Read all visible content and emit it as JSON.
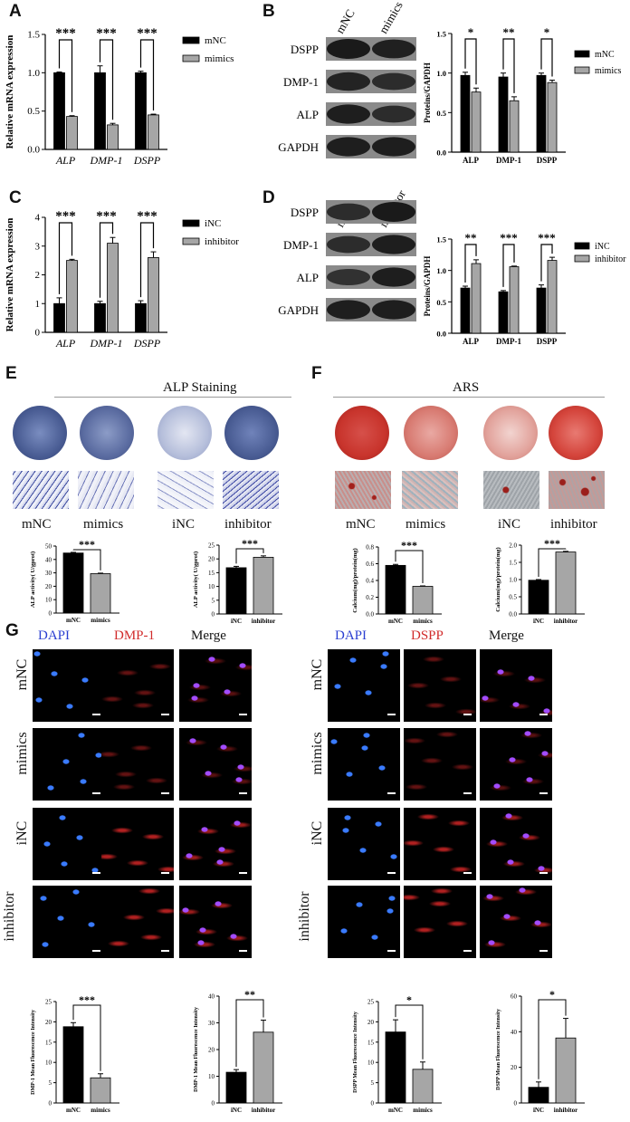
{
  "panels": {
    "A": "A",
    "B": "B",
    "C": "C",
    "D": "D",
    "E": "E",
    "F": "F",
    "G": "G"
  },
  "colors": {
    "black_bar": "#000000",
    "grey_bar": "#a6a6a6",
    "plate_blue": "#4a5d94",
    "plate_red": "#c8342c"
  },
  "chart_data": [
    {
      "id": "A",
      "type": "bar",
      "categories": [
        "ALP",
        "DMP-1",
        "DSPP"
      ],
      "ylabel": "Relative mRNA expression",
      "ylim": [
        0,
        1.5
      ],
      "yticks": [
        "0.0",
        "0.5",
        "1.0",
        "1.5"
      ],
      "series": [
        {
          "name": "mNC",
          "values": [
            1.0,
            1.0,
            1.0
          ],
          "err": [
            0.01,
            0.09,
            0.02
          ]
        },
        {
          "name": "mimics",
          "values": [
            0.43,
            0.32,
            0.45
          ],
          "err": [
            0.01,
            0.02,
            0.01
          ]
        }
      ],
      "significance": [
        "***",
        "***",
        "***"
      ],
      "italic_categories": true
    },
    {
      "id": "B",
      "type": "bar",
      "categories": [
        "ALP",
        "DMP-1",
        "DSPP"
      ],
      "ylabel": "Proteins/GAPDH",
      "ylim": [
        0,
        1.5
      ],
      "yticks": [
        "0.0",
        "0.5",
        "1.0",
        "1.5"
      ],
      "series": [
        {
          "name": "mNC",
          "values": [
            0.97,
            0.95,
            0.97
          ],
          "err": [
            0.04,
            0.05,
            0.03
          ]
        },
        {
          "name": "mimics",
          "values": [
            0.76,
            0.65,
            0.88
          ],
          "err": [
            0.05,
            0.05,
            0.03
          ]
        }
      ],
      "significance": [
        "*",
        "**",
        "*"
      ],
      "italic_categories": false
    },
    {
      "id": "C",
      "type": "bar",
      "categories": [
        "ALP",
        "DMP-1",
        "DSPP"
      ],
      "ylabel": "Relative mRNA expression",
      "ylim": [
        0,
        4
      ],
      "yticks": [
        "0",
        "1",
        "2",
        "3",
        "4"
      ],
      "series": [
        {
          "name": "iNC",
          "values": [
            1.0,
            1.0,
            1.0
          ],
          "err": [
            0.2,
            0.08,
            0.1
          ]
        },
        {
          "name": "inhibitor",
          "values": [
            2.5,
            3.1,
            2.6
          ],
          "err": [
            0.04,
            0.2,
            0.2
          ]
        }
      ],
      "significance": [
        "***",
        "***",
        "***"
      ],
      "italic_categories": true
    },
    {
      "id": "D",
      "type": "bar",
      "categories": [
        "ALP",
        "DMP-1",
        "DSPP"
      ],
      "ylabel": "Proteins/GAPDH",
      "ylim": [
        0,
        1.5
      ],
      "yticks": [
        "0.0",
        "0.5",
        "1.0",
        "1.5"
      ],
      "series": [
        {
          "name": "iNC",
          "values": [
            0.72,
            0.66,
            0.72
          ],
          "err": [
            0.03,
            0.02,
            0.05
          ]
        },
        {
          "name": "inhibitor",
          "values": [
            1.11,
            1.06,
            1.16
          ],
          "err": [
            0.06,
            0.01,
            0.05
          ]
        }
      ],
      "significance": [
        "**",
        "***",
        "***"
      ],
      "italic_categories": false
    },
    {
      "id": "E1",
      "type": "bar",
      "categories": [
        "mNC",
        "mimics"
      ],
      "ylabel": "ALP activity( U/gprot)",
      "ylim": [
        0,
        50
      ],
      "yticks": [
        "0",
        "10",
        "20",
        "30",
        "40",
        "50"
      ],
      "values": [
        44.8,
        29.4
      ],
      "err": [
        0.5,
        0.4
      ],
      "significance": "***"
    },
    {
      "id": "E2",
      "type": "bar",
      "categories": [
        "iNC",
        "inhibitor"
      ],
      "ylabel": "ALP activity( U/gprot)",
      "ylim": [
        0,
        25
      ],
      "yticks": [
        "0",
        "5",
        "10",
        "15",
        "20",
        "25"
      ],
      "values": [
        16.8,
        20.6
      ],
      "err": [
        0.5,
        0.5
      ],
      "significance": "***"
    },
    {
      "id": "F1",
      "type": "bar",
      "categories": [
        "mNC",
        "mimics"
      ],
      "ylabel": "Calcium(mg)/protein(mg)",
      "ylim": [
        0,
        0.8
      ],
      "yticks": [
        "0.0",
        "0.2",
        "0.4",
        "0.6",
        "0.8"
      ],
      "values": [
        0.58,
        0.33
      ],
      "err": [
        0.012,
        0.005
      ],
      "significance": "***"
    },
    {
      "id": "F2",
      "type": "bar",
      "categories": [
        "iNC",
        "inhibitor"
      ],
      "ylabel": "Calcium(mg)/protein(mg)",
      "ylim": [
        0,
        2.0
      ],
      "yticks": [
        "0.0",
        "0.5",
        "1.0",
        "1.5",
        "2.0"
      ],
      "values": [
        0.98,
        1.8
      ],
      "err": [
        0.02,
        0.02
      ],
      "significance": "***"
    },
    {
      "id": "G1",
      "type": "bar",
      "categories": [
        "mNC",
        "mimics"
      ],
      "ylabel": "DMP-1 Mean Fluorescence Intensity",
      "ylim": [
        0,
        25
      ],
      "yticks": [
        "0",
        "5",
        "10",
        "15",
        "20",
        "25"
      ],
      "values": [
        18.8,
        6.2
      ],
      "err": [
        1.0,
        1.0
      ],
      "significance": "***"
    },
    {
      "id": "G2",
      "type": "bar",
      "categories": [
        "iNC",
        "inhibitor"
      ],
      "ylabel": "DMP-1 Mean Fluorescence Intensity",
      "ylim": [
        0,
        40
      ],
      "yticks": [
        "0",
        "10",
        "20",
        "30",
        "40"
      ],
      "values": [
        11.5,
        26.5
      ],
      "err": [
        1.0,
        4.5
      ],
      "significance": "**"
    },
    {
      "id": "G3",
      "type": "bar",
      "categories": [
        "mNC",
        "mimics"
      ],
      "ylabel": "DSPP Mean Fluorescence Intensity",
      "ylim": [
        0,
        25
      ],
      "yticks": [
        "0",
        "5",
        "10",
        "15",
        "20",
        "25"
      ],
      "values": [
        17.5,
        8.3
      ],
      "err": [
        3.0,
        1.8
      ],
      "significance": "*"
    },
    {
      "id": "G4",
      "type": "bar",
      "categories": [
        "iNC",
        "inhibitor"
      ],
      "ylabel": "DSPP Mean Fluorescence Intensity",
      "ylim": [
        0,
        60
      ],
      "yticks": [
        "0",
        "20",
        "40",
        "60"
      ],
      "values": [
        8.8,
        36.5
      ],
      "err": [
        3.0,
        11.0
      ],
      "significance": "*"
    }
  ],
  "western": {
    "B": {
      "lanes": [
        "mNC",
        "mimics"
      ],
      "rows": [
        "DSPP",
        "DMP-1",
        "ALP",
        "GAPDH"
      ]
    },
    "D": {
      "lanes": [
        "iNC",
        "inhibitor"
      ],
      "rows": [
        "DSPP",
        "DMP-1",
        "ALP",
        "GAPDH"
      ]
    }
  },
  "staining": {
    "alp_title": "ALP Staining",
    "ars_title": "ARS",
    "groups_e": [
      "mNC",
      "mimics",
      "iNC",
      "inhibitor"
    ],
    "groups_f": [
      "mNC",
      "mimics",
      "iNC",
      "inhibitor"
    ]
  },
  "fluorescence": {
    "left_headers": [
      "DAPI",
      "DMP-1",
      "Merge"
    ],
    "right_headers": [
      "DAPI",
      "DSPP",
      "Merge"
    ],
    "rows": [
      "mNC",
      "mimics",
      "iNC",
      "inhibitor"
    ],
    "header_colors": [
      "#2b3fd1",
      "#d12b2b",
      "#111111"
    ]
  }
}
